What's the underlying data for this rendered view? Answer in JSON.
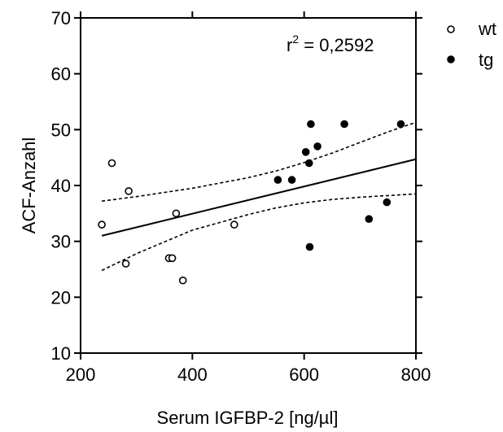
{
  "chart_data": {
    "type": "scatter",
    "xlabel": "Serum IGFBP-2 [ng/µl]",
    "ylabel": "ACF-Anzahl",
    "xlim": [
      200,
      800
    ],
    "ylim": [
      10,
      70
    ],
    "x_ticks": [
      "200",
      "400",
      "600",
      "800"
    ],
    "y_ticks": [
      "10",
      "20",
      "30",
      "40",
      "50",
      "60",
      "70"
    ],
    "x_tick_values": [
      200,
      400,
      600,
      800
    ],
    "y_tick_values": [
      10,
      20,
      30,
      40,
      50,
      60,
      70
    ],
    "grid": false,
    "legend_position": "outside-top-right",
    "annotation": {
      "r_label": "r",
      "r_exponent": "2",
      "r_value": " = 0,2592"
    },
    "series": [
      {
        "name": "wt",
        "marker": "open-circle",
        "points": [
          [
            238,
            33
          ],
          [
            256,
            44
          ],
          [
            281,
            26
          ],
          [
            286,
            39
          ],
          [
            358,
            27
          ],
          [
            364,
            27
          ],
          [
            371,
            35
          ],
          [
            383,
            23
          ],
          [
            475,
            33
          ]
        ]
      },
      {
        "name": "tg",
        "marker": "filled-circle",
        "points": [
          [
            553,
            41
          ],
          [
            578,
            41
          ],
          [
            603,
            46
          ],
          [
            609,
            44
          ],
          [
            610,
            29
          ],
          [
            612,
            51
          ],
          [
            624,
            47
          ],
          [
            672,
            51
          ],
          [
            716,
            34
          ],
          [
            748,
            37
          ],
          [
            773,
            51
          ]
        ]
      }
    ],
    "regression": {
      "line": [
        [
          238,
          31
        ],
        [
          800,
          44.7
        ]
      ],
      "ci_upper": [
        [
          238,
          37.2
        ],
        [
          300,
          38
        ],
        [
          400,
          39.5
        ],
        [
          500,
          41.4
        ],
        [
          550,
          42.6
        ],
        [
          600,
          44.1
        ],
        [
          650,
          45.8
        ],
        [
          700,
          47.7
        ],
        [
          750,
          49.6
        ],
        [
          800,
          51.3
        ]
      ],
      "ci_lower": [
        [
          238,
          24.8
        ],
        [
          300,
          27.8
        ],
        [
          400,
          32.0
        ],
        [
          500,
          34.8
        ],
        [
          550,
          36.0
        ],
        [
          600,
          36.9
        ],
        [
          650,
          37.5
        ],
        [
          700,
          37.9
        ],
        [
          750,
          38.2
        ],
        [
          800,
          38.5
        ]
      ]
    }
  }
}
